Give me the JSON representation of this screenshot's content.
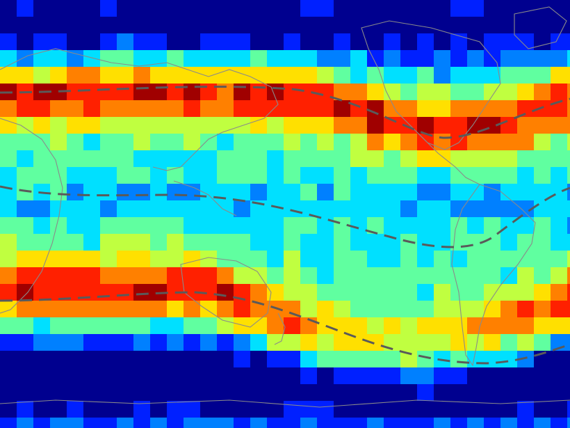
{
  "map": {
    "colormap": [
      "#00008f",
      "#0020ff",
      "#0080ff",
      "#00e0ff",
      "#60ffa0",
      "#c0ff40",
      "#ffe000",
      "#ff8000",
      "#ff2000",
      "#a00000"
    ],
    "land_outline_color": "#8a8a8a",
    "dashed_line_color": "#5a5a5a"
  }
}
